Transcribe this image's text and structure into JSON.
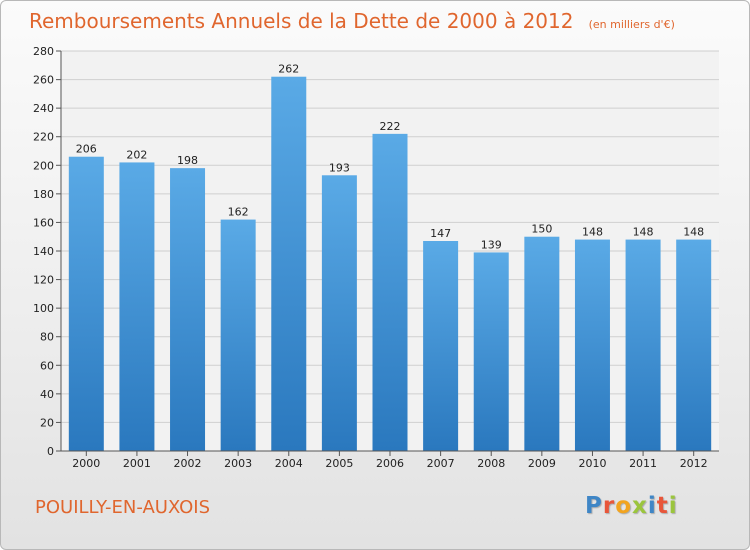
{
  "header": {
    "title": "Remboursements Annuels de la Dette de 2000 à 2012",
    "unit": "(en milliers d'€)"
  },
  "footer": {
    "commune": "POUILLY-EN-AUXOIS",
    "logo": {
      "letters": [
        "P",
        "r",
        "o",
        "x",
        "i",
        "t",
        "i"
      ],
      "colors": [
        "#3f86c6",
        "#e8563a",
        "#f2a41f",
        "#9bc53d",
        "#3f86c6",
        "#e8563a",
        "#9bc53d"
      ]
    }
  },
  "colors": {
    "accent": "#e0662e",
    "bar_top": "#5aaae6",
    "bar_bottom": "#2a78be"
  },
  "chart_data": {
    "type": "bar",
    "title": "Remboursements Annuels de la Dette de 2000 à 2012",
    "subtitle": "(en milliers d'€)",
    "categories": [
      "2000",
      "2001",
      "2002",
      "2003",
      "2004",
      "2005",
      "2006",
      "2007",
      "2008",
      "2009",
      "2010",
      "2011",
      "2012"
    ],
    "values": [
      206,
      202,
      198,
      162,
      262,
      193,
      222,
      147,
      139,
      150,
      148,
      148,
      148
    ],
    "ylim": [
      0,
      280
    ],
    "yticks": [
      0,
      20,
      40,
      60,
      80,
      100,
      120,
      140,
      160,
      180,
      200,
      220,
      240,
      260,
      280
    ],
    "grid": true,
    "legend": "none"
  }
}
